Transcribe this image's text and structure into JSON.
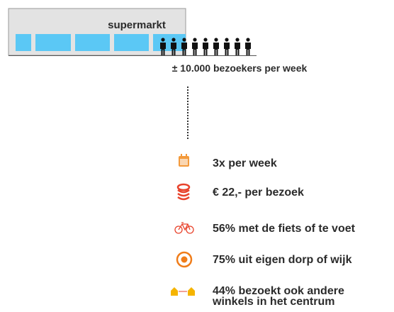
{
  "building": {
    "label": "supermarkt"
  },
  "visitors": "± 10.000 bezoekers per week",
  "stats": [
    {
      "lines": [
        "3x per week"
      ]
    },
    {
      "lines": [
        "€ 22,- per bezoek"
      ]
    },
    {
      "lines": [
        "56% met de fiets of te voet"
      ]
    },
    {
      "lines": [
        "75% uit eigen dorp of wijk"
      ]
    },
    {
      "lines": [
        "44% bezoekt ook andere",
        "winkels in het centrum"
      ]
    }
  ]
}
